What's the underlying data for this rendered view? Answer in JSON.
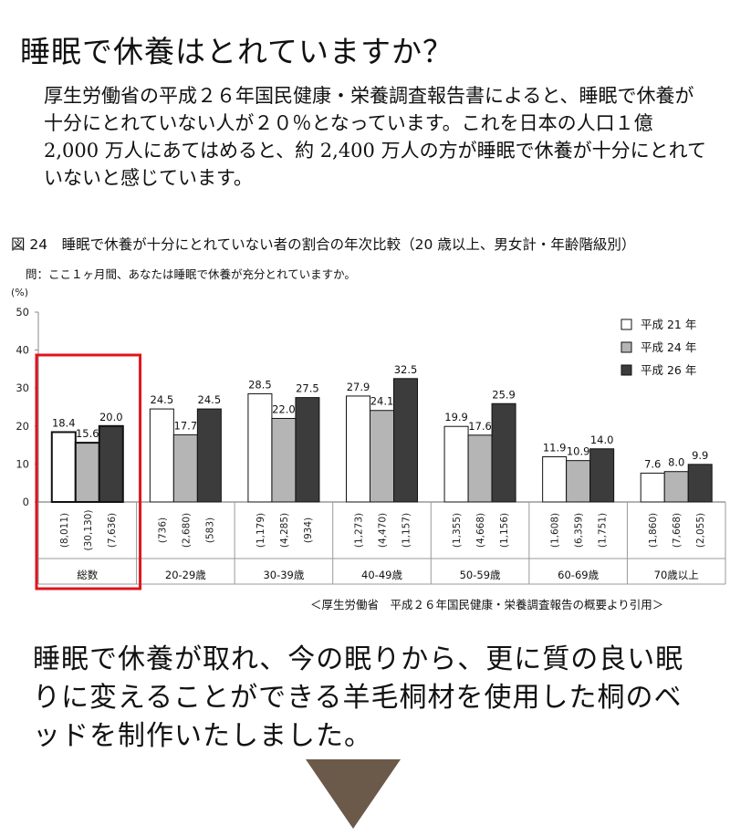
{
  "page": {
    "title": "睡眠で休養はとれていますか？",
    "intro": "厚生労働省の平成２６年国民健康・栄養調査報告書によると、睡眠で休養が十分にとれていない人が２０％となっています。これを日本の人口１億 2,000 万人にあてはめると、約 2,400 万人の方が睡眠で休養が十分にとれていないと感じています。",
    "source": "＜厚生労働省　平成２６年国民健康・栄養調査報告の概要より引用＞",
    "closing": "睡眠で休養が取れ、今の眠りから、更に質の良い眠りに変えることができる羊毛桐材を使用した桐のベッドを制作いたしました。"
  },
  "figure": {
    "title": "図 24　睡眠で休養が十分にとれていない者の割合の年次比較（20 歳以上、男女計・年齢階級別）",
    "question": "問：ここ１ヶ月間、あなたは睡眠で休養が充分とれていますか。"
  },
  "colors": {
    "h21": "#ffffff",
    "h24": "#b5b5b5",
    "h26": "#3c3c3c",
    "highlight": "#e0141e",
    "arrow": "#6b5a4a"
  },
  "chart_data": {
    "type": "bar",
    "yunit": "(%)",
    "ylim": [
      0,
      50
    ],
    "yticks": [
      0,
      10,
      20,
      30,
      40,
      50
    ],
    "grid": false,
    "legend_position": "top-right",
    "categories": [
      "総数",
      "20-29歳",
      "30-39歳",
      "40-49歳",
      "50-59歳",
      "60-69歳",
      "70歳以上"
    ],
    "series": [
      {
        "name": "平成 21 年",
        "values": [
          18.4,
          24.5,
          28.5,
          27.9,
          19.9,
          11.9,
          7.6
        ],
        "n": [
          "(8,011)",
          "(736)",
          "(1,179)",
          "(1,273)",
          "(1,355)",
          "(1,608)",
          "(1,860)"
        ]
      },
      {
        "name": "平成 24 年",
        "values": [
          15.6,
          17.7,
          22.0,
          24.1,
          17.6,
          10.9,
          8.0
        ],
        "n": [
          "(30,130)",
          "(2,680)",
          "(4,285)",
          "(4,470)",
          "(4,668)",
          "(6,359)",
          "(7,668)"
        ]
      },
      {
        "name": "平成 26 年",
        "values": [
          20.0,
          24.5,
          27.5,
          32.5,
          25.9,
          14.0,
          9.9
        ],
        "n": [
          "(7,636)",
          "(583)",
          "(934)",
          "(1,157)",
          "(1,156)",
          "(1,751)",
          "(2,055)"
        ]
      }
    ],
    "highlighted_category": "総数"
  }
}
